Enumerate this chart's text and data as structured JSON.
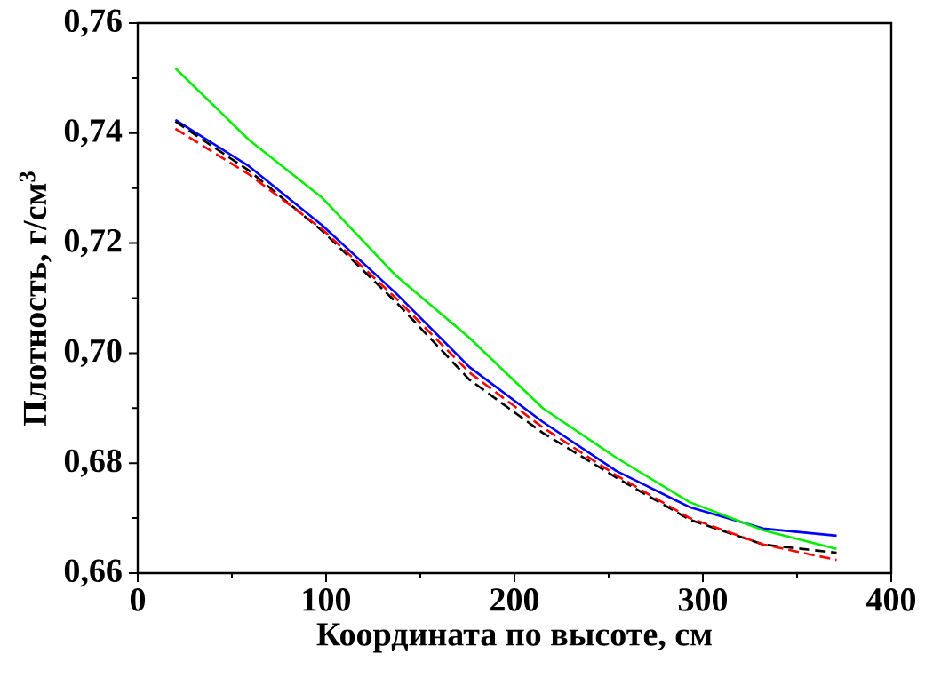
{
  "chart_data": {
    "type": "line",
    "xlabel": "Координата по высоте, см",
    "ylabel": "Плотность, г/см$^{3}$",
    "x": [
      20,
      59,
      98,
      137,
      176,
      215,
      254,
      293,
      332,
      371
    ],
    "xlim": [
      0,
      400
    ],
    "xticks": [
      0,
      100,
      200,
      300,
      400
    ],
    "ylim": [
      0.66,
      0.76
    ],
    "yticks": [
      {
        "value": 0.66,
        "label": "0,66"
      },
      {
        "value": 0.68,
        "label": "0,68"
      },
      {
        "value": 0.7,
        "label": "0,70"
      },
      {
        "value": 0.72,
        "label": "0,72"
      },
      {
        "value": 0.74,
        "label": "0,74"
      },
      {
        "value": 0.76,
        "label": "0,76"
      }
    ],
    "series": [
      {
        "color": "#0000ff",
        "line_style": "solid",
        "values": [
          0.7424,
          0.734,
          0.7232,
          0.7109,
          0.6975,
          0.6875,
          0.6786,
          0.672,
          0.6681,
          0.6668
        ]
      },
      {
        "color": "#00ee00",
        "line_style": "solid",
        "values": [
          0.7518,
          0.7388,
          0.7282,
          0.7141,
          0.7028,
          0.69,
          0.681,
          0.6729,
          0.6678,
          0.6644
        ]
      },
      {
        "color": "#000000",
        "line_style": "dashed",
        "values": [
          0.7421,
          0.7332,
          0.7222,
          0.7093,
          0.6952,
          0.6855,
          0.6774,
          0.6697,
          0.6652,
          0.6637
        ]
      },
      {
        "color": "#ff0000",
        "line_style": "dashed",
        "values": [
          0.7408,
          0.7325,
          0.7225,
          0.71,
          0.6965,
          0.6865,
          0.6778,
          0.67,
          0.6652,
          0.6624
        ]
      }
    ]
  }
}
